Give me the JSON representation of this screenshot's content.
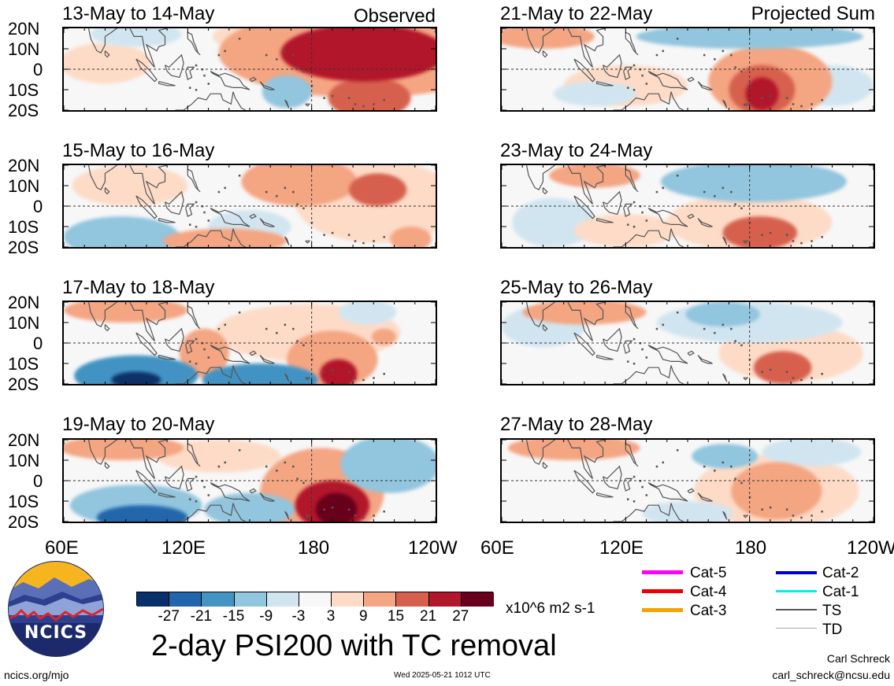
{
  "tags": {
    "observed": "Observed",
    "projected": "Projected Sum"
  },
  "lat_labels": [
    "20N",
    "10N",
    "0",
    "10S",
    "20S"
  ],
  "lon_labels": [
    "60E",
    "120E",
    "180",
    "120W"
  ],
  "panels": [
    {
      "id": "p1",
      "title": "13-May to 14-May",
      "column": "observed",
      "features": [
        {
          "lon": 205,
          "lat": 8,
          "rx": 40,
          "ry": 14,
          "level": 21
        },
        {
          "lon": 205,
          "lat": 8,
          "rx": 70,
          "ry": 22,
          "level": 9
        },
        {
          "lon": 208,
          "lat": -14,
          "rx": 20,
          "ry": 10,
          "level": 15
        },
        {
          "lon": 168,
          "lat": -11,
          "rx": 12,
          "ry": 8,
          "level": -9
        },
        {
          "lon": 80,
          "lat": 3,
          "rx": 22,
          "ry": 10,
          "level": 3
        },
        {
          "lon": 95,
          "lat": 17,
          "rx": 22,
          "ry": 6,
          "level": -3
        },
        {
          "lon": 148,
          "lat": 16,
          "rx": 16,
          "ry": 6,
          "level": 3
        }
      ]
    },
    {
      "id": "p2",
      "title": "15-May to 16-May",
      "column": "observed",
      "features": [
        {
          "lon": 174,
          "lat": 12,
          "rx": 28,
          "ry": 12,
          "level": 9
        },
        {
          "lon": 212,
          "lat": 8,
          "rx": 14,
          "ry": 8,
          "level": 15
        },
        {
          "lon": 212,
          "lat": 2,
          "rx": 40,
          "ry": 20,
          "level": 3
        },
        {
          "lon": 138,
          "lat": -17,
          "rx": 30,
          "ry": 6,
          "level": 9
        },
        {
          "lon": 88,
          "lat": -15,
          "rx": 28,
          "ry": 10,
          "level": -9
        },
        {
          "lon": 150,
          "lat": -10,
          "rx": 20,
          "ry": 8,
          "level": -3
        },
        {
          "lon": 92,
          "lat": 10,
          "rx": 28,
          "ry": 10,
          "level": 3
        },
        {
          "lon": 228,
          "lat": -16,
          "rx": 10,
          "ry": 6,
          "level": 9
        }
      ]
    },
    {
      "id": "p3",
      "title": "17-May to 18-May",
      "column": "observed",
      "features": [
        {
          "lon": 193,
          "lat": -15,
          "rx": 9,
          "ry": 7,
          "level": 21
        },
        {
          "lon": 190,
          "lat": -8,
          "rx": 22,
          "ry": 14,
          "level": 9
        },
        {
          "lon": 178,
          "lat": 5,
          "rx": 45,
          "ry": 14,
          "level": 3
        },
        {
          "lon": 155,
          "lat": -18,
          "rx": 28,
          "ry": 8,
          "level": -15
        },
        {
          "lon": 95,
          "lat": -16,
          "rx": 30,
          "ry": 10,
          "level": -15
        },
        {
          "lon": 95,
          "lat": -18,
          "rx": 12,
          "ry": 4,
          "level": -27
        },
        {
          "lon": 90,
          "lat": 16,
          "rx": 30,
          "ry": 6,
          "level": 9
        },
        {
          "lon": 128,
          "lat": -5,
          "rx": 12,
          "ry": 12,
          "level": 9
        },
        {
          "lon": 207,
          "lat": 15,
          "rx": 14,
          "ry": 6,
          "level": -3
        },
        {
          "lon": 215,
          "lat": 3,
          "rx": 6,
          "ry": 4,
          "level": 9
        }
      ]
    },
    {
      "id": "p4",
      "title": "19-May to 20-May",
      "column": "observed",
      "features": [
        {
          "lon": 185,
          "lat": -6,
          "rx": 30,
          "ry": 22,
          "level": 9
        },
        {
          "lon": 190,
          "lat": -12,
          "rx": 18,
          "ry": 12,
          "level": 21
        },
        {
          "lon": 192,
          "lat": -14,
          "rx": 10,
          "ry": 8,
          "level": 27
        },
        {
          "lon": 98,
          "lat": -18,
          "rx": 22,
          "ry": 6,
          "level": -21
        },
        {
          "lon": 95,
          "lat": -12,
          "rx": 32,
          "ry": 10,
          "level": -9
        },
        {
          "lon": 150,
          "lat": -14,
          "rx": 22,
          "ry": 8,
          "level": -9
        },
        {
          "lon": 88,
          "lat": 16,
          "rx": 30,
          "ry": 6,
          "level": 9
        },
        {
          "lon": 218,
          "lat": 8,
          "rx": 24,
          "ry": 14,
          "level": -9
        },
        {
          "lon": 135,
          "lat": 12,
          "rx": 30,
          "ry": 8,
          "level": 3
        }
      ]
    },
    {
      "id": "p5",
      "title": "21-May to 22-May",
      "column": "projected",
      "features": [
        {
          "lon": 186,
          "lat": -10,
          "rx": 16,
          "ry": 12,
          "level": 15
        },
        {
          "lon": 186,
          "lat": -12,
          "rx": 8,
          "ry": 8,
          "level": 21
        },
        {
          "lon": 190,
          "lat": -6,
          "rx": 30,
          "ry": 18,
          "level": 9
        },
        {
          "lon": 180,
          "lat": 16,
          "rx": 55,
          "ry": 6,
          "level": -9
        },
        {
          "lon": 80,
          "lat": 16,
          "rx": 25,
          "ry": 6,
          "level": 9
        },
        {
          "lon": 120,
          "lat": -8,
          "rx": 30,
          "ry": 10,
          "level": 3
        },
        {
          "lon": 105,
          "lat": -12,
          "rx": 20,
          "ry": 6,
          "level": -3
        },
        {
          "lon": 220,
          "lat": -8,
          "rx": 20,
          "ry": 10,
          "level": -3
        }
      ]
    },
    {
      "id": "p6",
      "title": "23-May to 24-May",
      "column": "projected",
      "features": [
        {
          "lon": 182,
          "lat": 12,
          "rx": 45,
          "ry": 10,
          "level": -9
        },
        {
          "lon": 185,
          "lat": -13,
          "rx": 18,
          "ry": 8,
          "level": 15
        },
        {
          "lon": 180,
          "lat": -8,
          "rx": 40,
          "ry": 14,
          "level": 3
        },
        {
          "lon": 105,
          "lat": 15,
          "rx": 22,
          "ry": 6,
          "level": 9
        },
        {
          "lon": 85,
          "lat": -8,
          "rx": 20,
          "ry": 12,
          "level": -3
        },
        {
          "lon": 120,
          "lat": -12,
          "rx": 25,
          "ry": 8,
          "level": 3
        }
      ]
    },
    {
      "id": "p7",
      "title": "25-May to 26-May",
      "column": "projected",
      "features": [
        {
          "lon": 167,
          "lat": 14,
          "rx": 18,
          "ry": 6,
          "level": -9
        },
        {
          "lon": 180,
          "lat": 10,
          "rx": 45,
          "ry": 10,
          "level": -3
        },
        {
          "lon": 196,
          "lat": -12,
          "rx": 14,
          "ry": 8,
          "level": 15
        },
        {
          "lon": 200,
          "lat": -5,
          "rx": 35,
          "ry": 14,
          "level": 3
        },
        {
          "lon": 100,
          "lat": 15,
          "rx": 30,
          "ry": 6,
          "level": 9
        },
        {
          "lon": 80,
          "lat": 8,
          "rx": 20,
          "ry": 10,
          "level": -3
        }
      ]
    },
    {
      "id": "p8",
      "title": "27-May to 28-May",
      "column": "projected",
      "features": [
        {
          "lon": 193,
          "lat": -5,
          "rx": 22,
          "ry": 14,
          "level": 9
        },
        {
          "lon": 193,
          "lat": -5,
          "rx": 40,
          "ry": 18,
          "level": 3
        },
        {
          "lon": 168,
          "lat": 12,
          "rx": 16,
          "ry": 6,
          "level": -9
        },
        {
          "lon": 210,
          "lat": 14,
          "rx": 24,
          "ry": 7,
          "level": -3
        },
        {
          "lon": 95,
          "lat": 16,
          "rx": 32,
          "ry": 6,
          "level": 9
        },
        {
          "lon": 150,
          "lat": -16,
          "rx": 22,
          "ry": 6,
          "level": -3
        }
      ]
    }
  ],
  "colorbar": {
    "colors": [
      "#08306b",
      "#2166ac",
      "#4393c3",
      "#92c5de",
      "#d1e5f0",
      "#f7f7f7",
      "#fddbc7",
      "#f4a582",
      "#d6604d",
      "#b2182b",
      "#67001f"
    ],
    "thresholds": [
      -27,
      -21,
      -15,
      -9,
      -3,
      3,
      9,
      15,
      21,
      27
    ],
    "tick_labels": [
      "-27",
      "-21",
      "-15",
      "-9",
      "-3",
      "3",
      "9",
      "15",
      "21",
      "27"
    ],
    "units": "x10^6 m2 s-1"
  },
  "tc_legend": [
    {
      "label": "Cat-5",
      "color": "#ff00ff"
    },
    {
      "label": "Cat-4",
      "color": "#ee0000"
    },
    {
      "label": "Cat-3",
      "color": "#f5a200"
    },
    {
      "label": "Cat-2",
      "color": "#0000cc"
    },
    {
      "label": "Cat-1",
      "color": "#00eeee"
    },
    {
      "label": "TS",
      "color": "#555555"
    },
    {
      "label": "TD",
      "color": "#aaaaaa"
    }
  ],
  "logo": {
    "text": "NCICS"
  },
  "main_title": "2-day PSI200 with TC removal",
  "footer": {
    "url": "ncics.org/mjo",
    "timestamp": "Wed 2025-05-21 1012 UTC",
    "author": "Carl Schreck",
    "email": "carl_schreck@ncsu.edu"
  }
}
